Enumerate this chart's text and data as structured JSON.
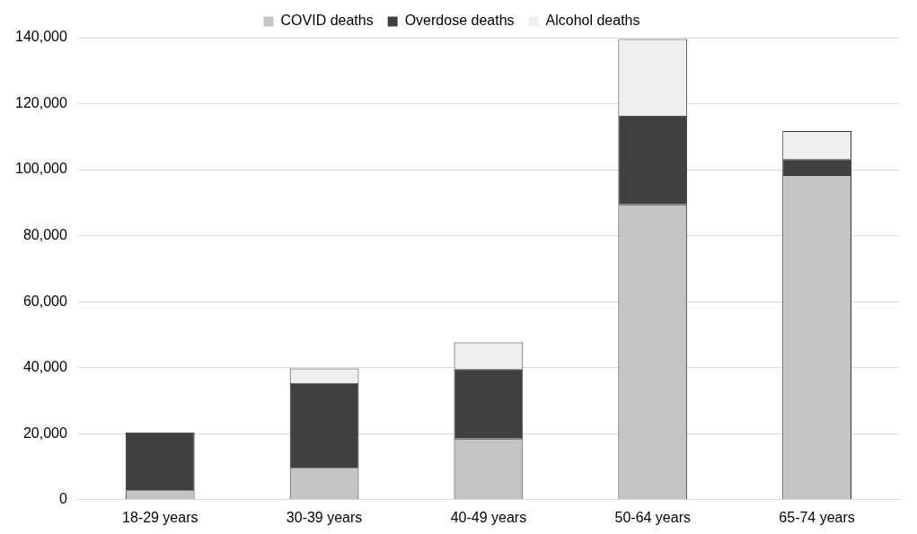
{
  "chart_data": {
    "type": "bar",
    "stacked": true,
    "categories": [
      "18-29 years",
      "30-39 years",
      "40-49 years",
      "50-64 years",
      "65-74 years"
    ],
    "series": [
      {
        "name": "COVID deaths",
        "color": "#c4c4c4",
        "values": [
          2900,
          9700,
          18500,
          89500,
          98400
        ]
      },
      {
        "name": "Overdose deaths",
        "color": "#404040",
        "values": [
          17500,
          25700,
          21100,
          26900,
          4800
        ]
      },
      {
        "name": "Alcohol deaths",
        "color": "#efefef",
        "values": [
          null,
          4400,
          8100,
          23200,
          8500
        ]
      }
    ],
    "ylim": [
      0,
      140000
    ],
    "yticks": [
      {
        "value": 0,
        "label": "0"
      },
      {
        "value": 20000,
        "label": "20,000"
      },
      {
        "value": 40000,
        "label": "40,000"
      },
      {
        "value": 60000,
        "label": "60,000"
      },
      {
        "value": 80000,
        "label": "80,000"
      },
      {
        "value": 100000,
        "label": "100,000"
      },
      {
        "value": 120000,
        "label": "120,000"
      },
      {
        "value": 140000,
        "label": "140,000"
      }
    ],
    "grid": "y",
    "legend": "top"
  }
}
